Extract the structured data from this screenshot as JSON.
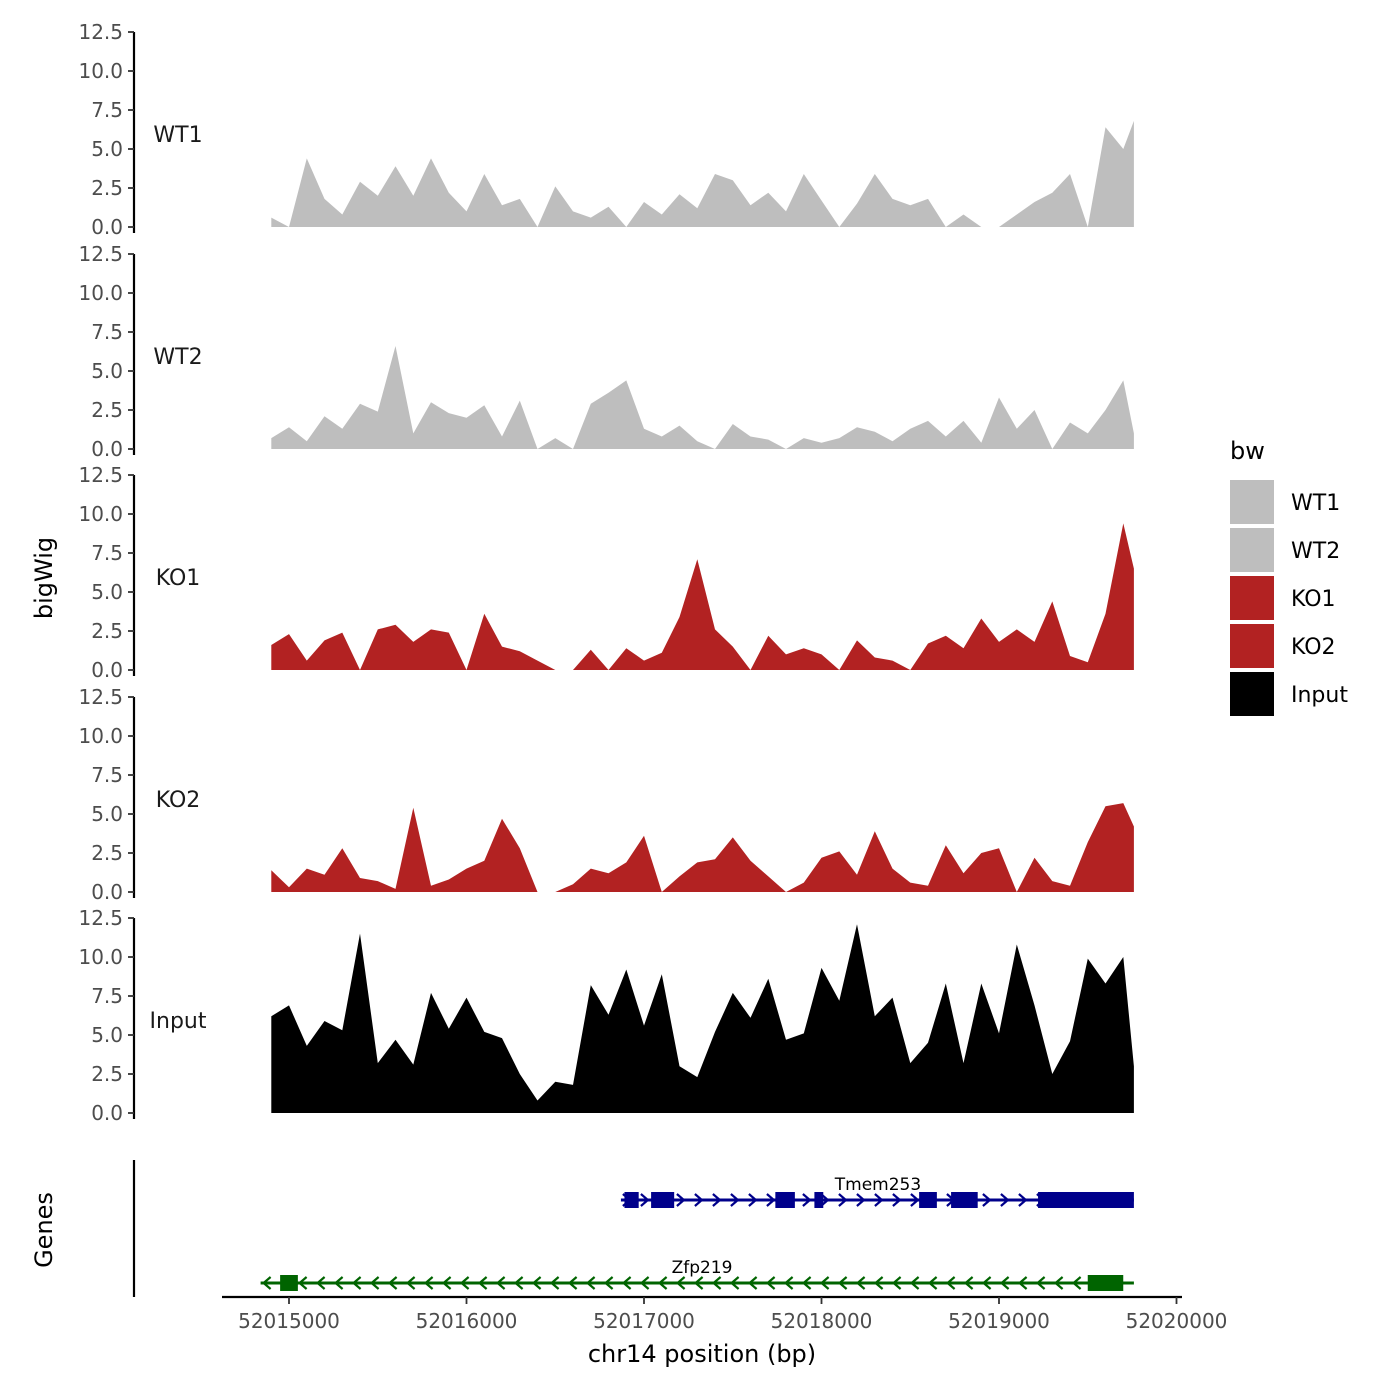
{
  "chart_data": {
    "type": "area",
    "title": "",
    "ylabel": "bigWig",
    "xlabel": "chr14 position (bp)",
    "genes_panel_label": "Genes",
    "xlim": [
      52014800,
      52020000
    ],
    "x_ticks": [
      52015000,
      52016000,
      52017000,
      52018000,
      52019000,
      52020000
    ],
    "x_tick_labels": [
      "52015000",
      "52016000",
      "52017000",
      "52018000",
      "52019000",
      "52020000"
    ],
    "ylim": [
      0,
      12.5
    ],
    "y_ticks": [
      0,
      2.5,
      5,
      7.5,
      10,
      12.5
    ],
    "y_tick_labels": [
      "0.0",
      "2.5",
      "5.0",
      "7.5",
      "10.0",
      "12.5"
    ],
    "legend": {
      "title": "bw",
      "entries": [
        {
          "label": "WT1",
          "color": "#bebebe"
        },
        {
          "label": "WT2",
          "color": "#bebebe"
        },
        {
          "label": "KO1",
          "color": "#b22222"
        },
        {
          "label": "KO2",
          "color": "#b22222"
        },
        {
          "label": "Input",
          "color": "#000000"
        }
      ]
    },
    "track_x": [
      52014900,
      52015000,
      52015100,
      52015200,
      52015300,
      52015400,
      52015500,
      52015600,
      52015700,
      52015800,
      52015900,
      52016000,
      52016100,
      52016200,
      52016300,
      52016400,
      52016500,
      52016600,
      52016700,
      52016800,
      52016900,
      52017000,
      52017100,
      52017200,
      52017300,
      52017400,
      52017500,
      52017600,
      52017700,
      52017800,
      52017900,
      52018000,
      52018100,
      52018200,
      52018300,
      52018400,
      52018500,
      52018600,
      52018700,
      52018800,
      52018900,
      52019000,
      52019100,
      52019200,
      52019300,
      52019400,
      52019500,
      52019600,
      52019700,
      52019760
    ],
    "series": [
      {
        "name": "WT1",
        "color": "#bebebe",
        "values": [
          0.6,
          0.0,
          4.4,
          1.8,
          0.8,
          2.9,
          2.0,
          3.9,
          2.0,
          4.4,
          2.2,
          1.0,
          3.4,
          1.4,
          1.8,
          0.0,
          2.6,
          1.0,
          0.6,
          1.3,
          0.0,
          1.6,
          0.8,
          2.1,
          1.2,
          3.4,
          3.0,
          1.4,
          2.2,
          1.0,
          3.4,
          1.7,
          0.0,
          1.5,
          3.4,
          1.8,
          1.4,
          1.8,
          0.0,
          0.8,
          0.0,
          0.0,
          0.8,
          1.6,
          2.2,
          3.4,
          0.0,
          6.4,
          5.0,
          6.8
        ]
      },
      {
        "name": "WT2",
        "color": "#bebebe",
        "values": [
          0.7,
          1.4,
          0.5,
          2.1,
          1.3,
          2.9,
          2.4,
          6.6,
          1.0,
          3.0,
          2.3,
          2.0,
          2.8,
          0.8,
          3.1,
          0.0,
          0.7,
          0.0,
          2.9,
          3.6,
          4.4,
          1.3,
          0.8,
          1.5,
          0.5,
          0.0,
          1.6,
          0.8,
          0.6,
          0.0,
          0.7,
          0.4,
          0.7,
          1.4,
          1.1,
          0.5,
          1.3,
          1.8,
          0.8,
          1.8,
          0.4,
          3.3,
          1.3,
          2.5,
          0.0,
          1.7,
          1.0,
          2.5,
          4.4,
          1.0
        ]
      },
      {
        "name": "KO1",
        "color": "#b22222",
        "values": [
          1.6,
          2.3,
          0.6,
          1.9,
          2.4,
          0.0,
          2.6,
          2.9,
          1.8,
          2.6,
          2.4,
          0.0,
          3.6,
          1.5,
          1.2,
          0.6,
          0.0,
          0.0,
          1.3,
          0.0,
          1.4,
          0.6,
          1.1,
          3.4,
          7.1,
          2.6,
          1.5,
          0.0,
          2.2,
          1.0,
          1.4,
          1.0,
          0.0,
          1.9,
          0.8,
          0.6,
          0.0,
          1.7,
          2.2,
          1.4,
          3.3,
          1.8,
          2.6,
          1.8,
          4.4,
          0.9,
          0.5,
          3.6,
          9.4,
          6.5
        ]
      },
      {
        "name": "KO2",
        "color": "#b22222",
        "values": [
          1.4,
          0.3,
          1.5,
          1.1,
          2.8,
          0.9,
          0.7,
          0.2,
          5.4,
          0.4,
          0.8,
          1.5,
          2.0,
          4.7,
          2.8,
          0.0,
          0.0,
          0.5,
          1.5,
          1.2,
          1.9,
          3.6,
          0.0,
          1.0,
          1.9,
          2.1,
          3.5,
          2.0,
          1.0,
          0.0,
          0.6,
          2.2,
          2.6,
          1.1,
          3.9,
          1.5,
          0.6,
          0.4,
          3.0,
          1.2,
          2.5,
          2.8,
          0.0,
          2.2,
          0.7,
          0.4,
          3.2,
          5.5,
          5.7,
          4.2
        ]
      },
      {
        "name": "Input",
        "color": "#000000",
        "values": [
          6.2,
          6.9,
          4.3,
          5.9,
          5.3,
          11.5,
          3.2,
          4.7,
          3.1,
          7.7,
          5.4,
          7.4,
          5.2,
          4.8,
          2.5,
          0.8,
          2.0,
          1.8,
          8.2,
          6.3,
          9.2,
          5.6,
          8.9,
          3.0,
          2.3,
          5.2,
          7.7,
          6.1,
          8.6,
          4.7,
          5.1,
          9.3,
          7.2,
          12.1,
          6.2,
          7.4,
          3.2,
          4.5,
          8.3,
          3.2,
          8.3,
          5.1,
          10.8,
          6.9,
          2.5,
          4.6,
          9.9,
          8.3,
          10.0,
          3.0
        ]
      }
    ],
    "genes": [
      {
        "name": "Tmem253",
        "strand": "+",
        "color": "#00008b",
        "start": 52016870,
        "end": 52019760,
        "exons": [
          [
            52016890,
            52016970
          ],
          [
            52017040,
            52017170
          ],
          [
            52017740,
            52017850
          ],
          [
            52017960,
            52018010
          ],
          [
            52018550,
            52018650
          ],
          [
            52018730,
            52018880
          ],
          [
            52019220,
            52019760
          ]
        ]
      },
      {
        "name": "Zfp219",
        "strand": "-",
        "color": "#006400",
        "start": 52014840,
        "end": 52019760,
        "exons": [
          [
            52014950,
            52015050
          ],
          [
            52019500,
            52019700
          ]
        ]
      }
    ]
  }
}
